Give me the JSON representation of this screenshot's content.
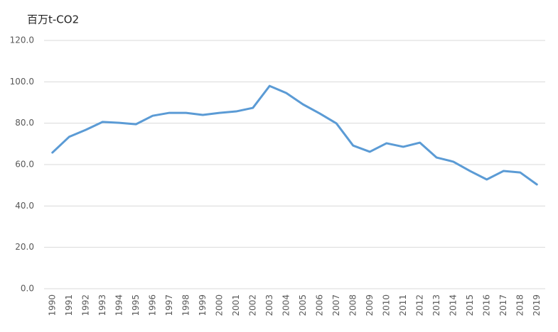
{
  "chart_data": {
    "type": "line",
    "title": "百万t-CO2",
    "categories": [
      "1990",
      "1991",
      "1992",
      "1993",
      "1994",
      "1995",
      "1996",
      "1997",
      "1998",
      "1999",
      "2000",
      "2001",
      "2002",
      "2003",
      "2004",
      "2005",
      "2006",
      "2007",
      "2008",
      "2009",
      "2010",
      "2011",
      "2012",
      "2013",
      "2014",
      "2015",
      "2016",
      "2017",
      "2018",
      "2019"
    ],
    "series": [
      {
        "color": "#5b9bd5",
        "values": [
          65.8,
          73.4,
          76.8,
          80.6,
          80.2,
          79.5,
          83.6,
          85.0,
          85.0,
          84.0,
          85.0,
          85.7,
          87.4,
          98.0,
          94.6,
          89.1,
          84.7,
          79.9,
          69.2,
          66.2,
          70.3,
          68.6,
          70.6,
          63.4,
          61.4,
          56.9,
          52.8,
          56.9,
          56.2,
          50.4
        ]
      }
    ],
    "ylim": [
      0,
      120
    ],
    "yticks": [
      {
        "value": 0,
        "label": "0.0"
      },
      {
        "value": 20,
        "label": "20.0"
      },
      {
        "value": 40,
        "label": "40.0"
      },
      {
        "value": 60,
        "label": "60.0"
      },
      {
        "value": 80,
        "label": "80.0"
      },
      {
        "value": 100,
        "label": "100.0"
      },
      {
        "value": 120,
        "label": "120.0"
      }
    ],
    "grid": true
  }
}
